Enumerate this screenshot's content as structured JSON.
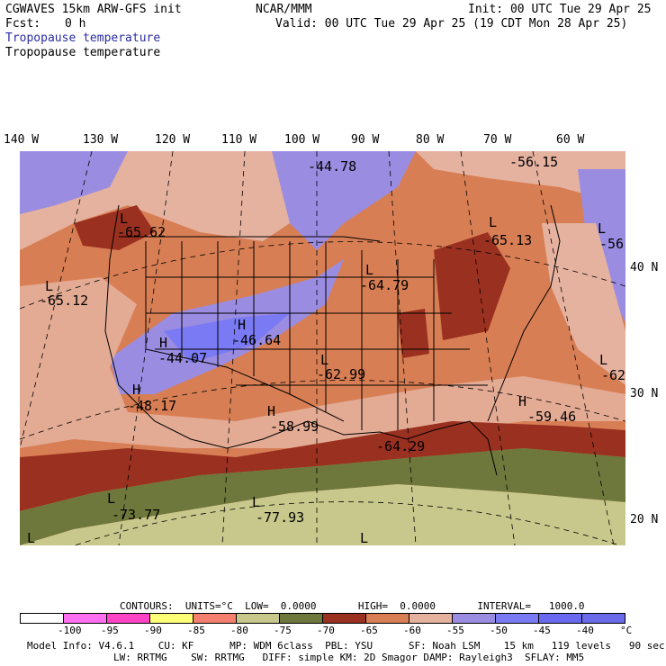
{
  "header": {
    "model": "CGWAVES 15km ARW-GFS init",
    "org": "NCAR/MMM",
    "init": "Init: 00 UTC Tue 29 Apr 25",
    "fcst_label": "Fcst:",
    "fcst_value": "0 h",
    "valid": "Valid: 00 UTC Tue 29 Apr 25 (19 CDT Mon 28 Apr 25)",
    "field_line1": "Tropopause temperature",
    "field_line2": "Tropopause temperature"
  },
  "longitudes": [
    "140 W",
    "130 W",
    "120 W",
    "110 W",
    "100 W",
    "90 W",
    "80 W",
    "70 W",
    "60 W"
  ],
  "latitudes": [
    "40 N",
    "30 N",
    "20 N"
  ],
  "map_labels": [
    {
      "t": "L"
    },
    {
      "t": "-65.62"
    },
    {
      "t": "-44.78"
    },
    {
      "t": "-56.15"
    },
    {
      "t": "L"
    },
    {
      "t": "-65.13"
    },
    {
      "t": "L"
    },
    {
      "t": "-56"
    },
    {
      "t": "L"
    },
    {
      "t": "-65.12"
    },
    {
      "t": "L"
    },
    {
      "t": "-64.79"
    },
    {
      "t": "H"
    },
    {
      "t": "-46.64"
    },
    {
      "t": "H"
    },
    {
      "t": "-44.07"
    },
    {
      "t": "L"
    },
    {
      "t": "-62.99"
    },
    {
      "t": "L"
    },
    {
      "t": "-62"
    },
    {
      "t": "H"
    },
    {
      "t": "-48.17"
    },
    {
      "t": "H"
    },
    {
      "t": "-58.99"
    },
    {
      "t": "H"
    },
    {
      "t": "-59.46"
    },
    {
      "t": "-64.29"
    },
    {
      "t": "L"
    },
    {
      "t": "-73.77"
    },
    {
      "t": "L"
    },
    {
      "t": "-77.93"
    },
    {
      "t": "L"
    },
    {
      "t": "L"
    }
  ],
  "contours": {
    "text": "CONTOURS:  UNITS=°C  LOW=  0.0000       HIGH=  0.0000       INTERVAL=   1000.0"
  },
  "colorbar": {
    "colors": [
      "#ffffff",
      "#ff6ff0",
      "#ff44c8",
      "#ffff77",
      "#f58070",
      "#c8c88c",
      "#6e783c",
      "#9a3020",
      "#d87e54",
      "#e5b2a0",
      "#9a8ce0",
      "#7a7af4",
      "#6a6af0",
      "#6a6aea"
    ],
    "ticks": [
      "-100",
      "-95",
      "-90",
      "-85",
      "-80",
      "-75",
      "-70",
      "-65",
      "-60",
      "-55",
      "-50",
      "-45",
      "-40"
    ],
    "unit": "°C"
  },
  "model_info": {
    "line1": "Model Info: V4.6.1    CU: KF      MP: WDM 6class  PBL: YSU      SF: Noah LSM    15 km   119 levels   90 sec",
    "line2": "LW: RRTMG    SW: RRTMG   DIFF: simple KM: 2D Smagor DAMP: Rayleigh3  SFLAY: MM5"
  }
}
